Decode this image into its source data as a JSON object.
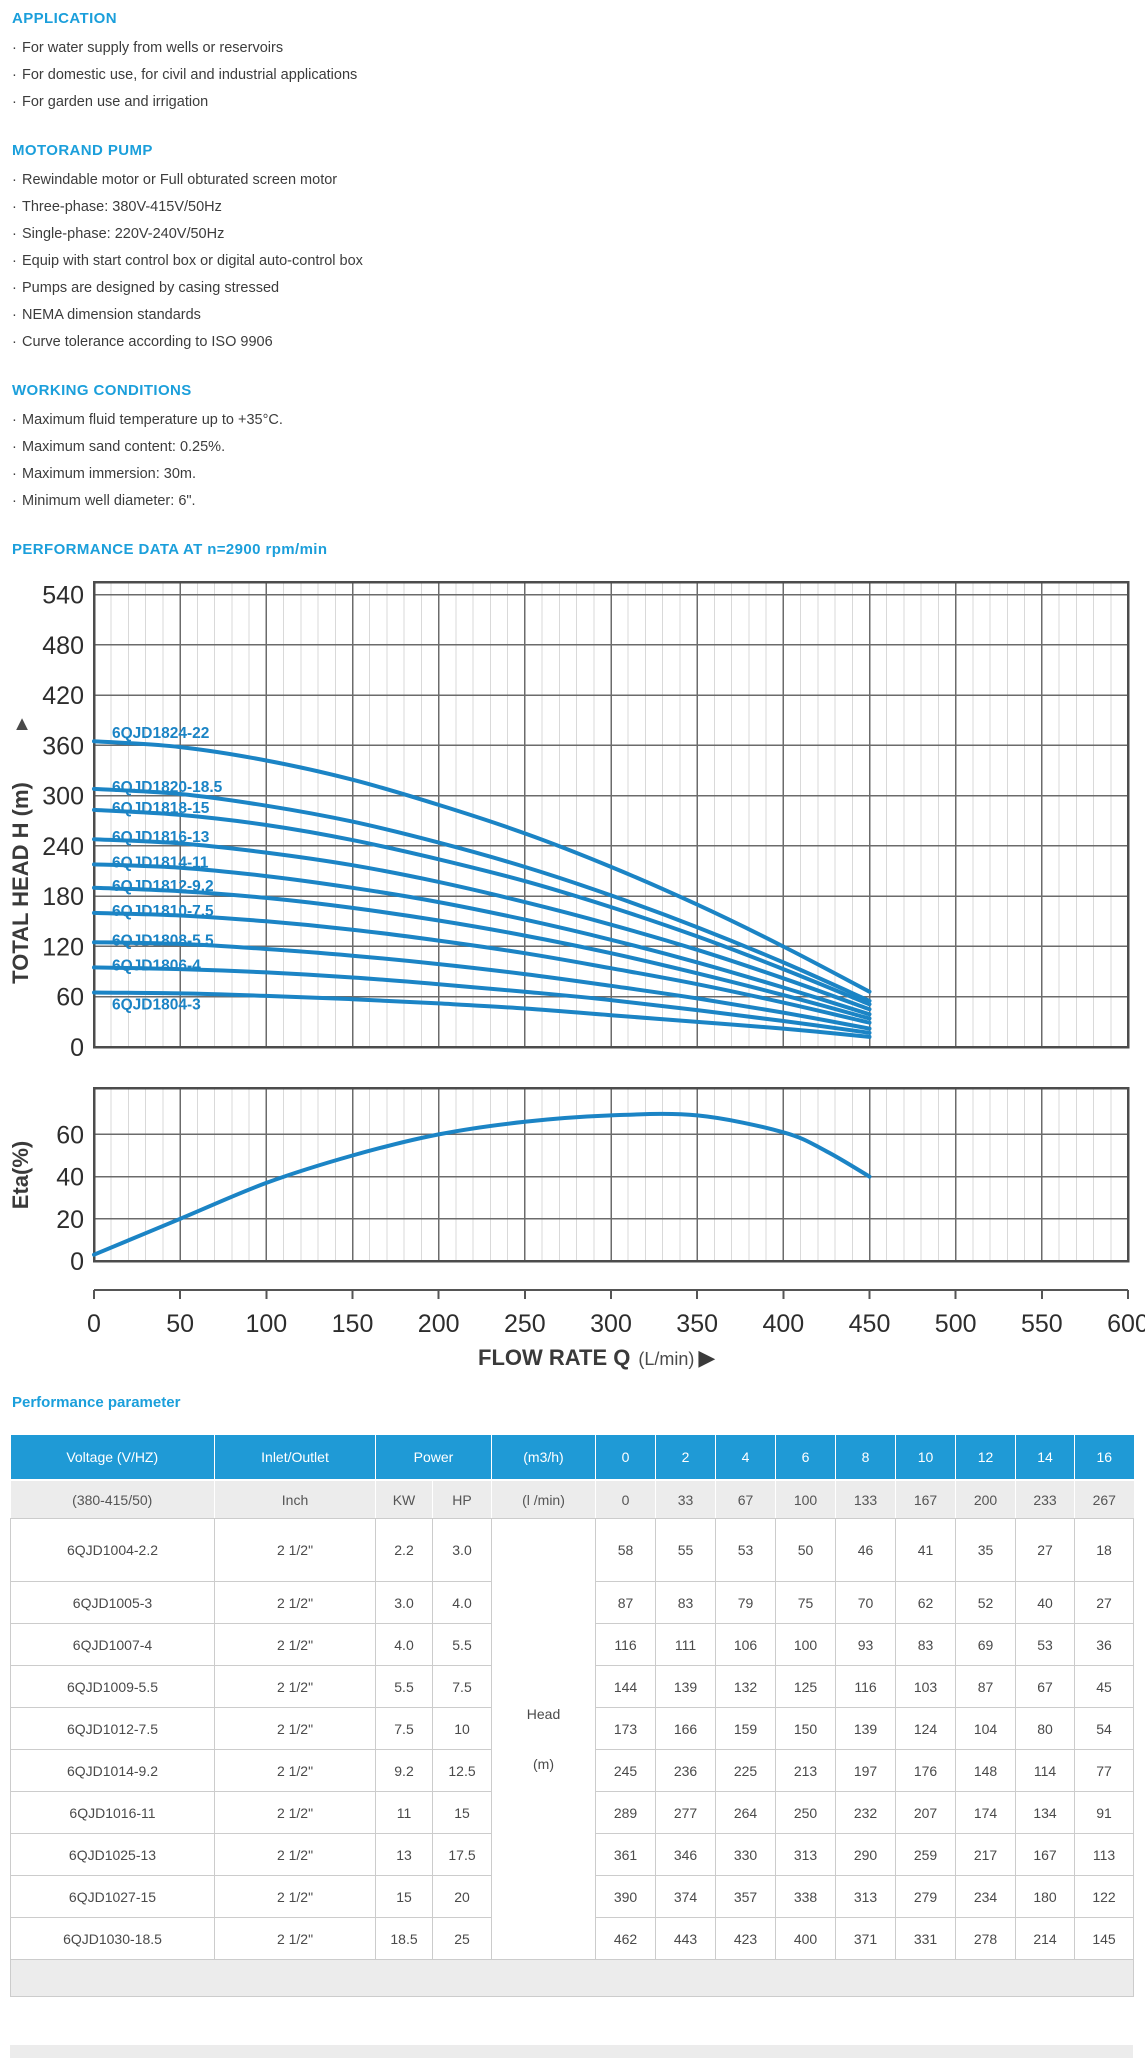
{
  "page": {
    "background": "#ffffff",
    "accent_blue": "#1b9fdb",
    "curve_blue": "#1b84c5",
    "table_header_blue": "#1f9ad6"
  },
  "sections": [
    {
      "title": "APPLICATION",
      "bullets": [
        "For water supply from wells or reservoirs",
        "For domestic use, for civil and industrial applications",
        "For garden use and irrigation"
      ]
    },
    {
      "title": "MOTORAND PUMP",
      "bullets": [
        "Rewindable motor or Full obturated screen motor",
        "Three-phase: 380V-415V/50Hz",
        "Single-phase: 220V-240V/50Hz",
        "Equip with start control box or digital auto-control box",
        "Pumps are designed by casing stressed",
        "NEMA dimension standards",
        "Curve tolerance according to ISO 9906"
      ]
    },
    {
      "title": "WORKING CONDITIONS",
      "bullets": [
        "Maximum fluid temperature up to +35°C.",
        "Maximum sand content: 0.25%.",
        "Maximum immersion: 30m.",
        "Minimum well diameter: 6\"."
      ]
    }
  ],
  "chart_heading": "PERFORMANCE DATA AT n=2900 rpm/min",
  "chart_data": {
    "type": "line",
    "title": "PERFORMANCE DATA AT n=2900 rpm/min",
    "x_axis": {
      "label_bold": "FLOW RATE Q",
      "label_unit": "(L/min)",
      "arrow": "▶",
      "min": 0,
      "max": 600,
      "tick_step": 50,
      "minor_step": 10,
      "ticks": [
        0,
        50,
        100,
        150,
        200,
        250,
        300,
        350,
        400,
        450,
        500,
        550,
        600
      ]
    },
    "head_axis": {
      "label": "TOTAL HEAD H (m)",
      "arrow": "▲",
      "min": 0,
      "max": 555,
      "tick_step": 60,
      "ticks": [
        0,
        60,
        120,
        180,
        240,
        300,
        360,
        420,
        480,
        540
      ]
    },
    "eta_axis": {
      "label": "Eta(%)",
      "min": 0,
      "max": 82,
      "ticks": [
        0,
        20,
        40,
        60
      ]
    },
    "grid": {
      "major_color": "#6b6b6b",
      "minor_color": "#d9d9d9",
      "border_color": "#4c4c4c"
    },
    "curve_color": "#1b84c5",
    "q_points": [
      0,
      50,
      100,
      150,
      200,
      250,
      300,
      350,
      400,
      450
    ],
    "curves": [
      {
        "name": "6QJD1824-22",
        "label_dy": -3,
        "head": [
          365,
          358,
          342,
          319,
          289,
          255,
          215,
          170,
          120,
          66
        ]
      },
      {
        "name": "6QJD1820-18.5",
        "label_dy": 3,
        "head": [
          308,
          302,
          288,
          269,
          244,
          215,
          181,
          143,
          101,
          55
        ]
      },
      {
        "name": "6QJD1818-15",
        "label_dy": 3,
        "head": [
          283,
          277,
          265,
          247,
          224,
          198,
          167,
          132,
          93,
          51
        ]
      },
      {
        "name": "6QJD1816-13",
        "label_dy": 3,
        "head": [
          248,
          243,
          232,
          217,
          197,
          173,
          146,
          116,
          82,
          45
        ]
      },
      {
        "name": "6QJD1814-11",
        "label_dy": 3,
        "head": [
          218,
          214,
          204,
          190,
          173,
          152,
          128,
          101,
          71,
          39
        ]
      },
      {
        "name": "6QJD1812-9.2",
        "label_dy": 3,
        "head": [
          190,
          186,
          178,
          166,
          151,
          133,
          112,
          88,
          62,
          34
        ]
      },
      {
        "name": "6QJD1810-7.5",
        "label_dy": 3,
        "head": [
          160,
          157,
          150,
          140,
          127,
          112,
          94,
          75,
          53,
          29
        ]
      },
      {
        "name": "6QJD1808-5.5",
        "label_dy": 3,
        "head": [
          125,
          123,
          117,
          109,
          99,
          87,
          73,
          58,
          41,
          22
        ]
      },
      {
        "name": "6QJD1806-4",
        "label_dy": 3,
        "head": [
          95,
          93,
          89,
          83,
          75,
          66,
          56,
          44,
          31,
          17
        ]
      },
      {
        "name": "6QJD1804-3",
        "label_dy": 17,
        "head": [
          65,
          64,
          61,
          57,
          52,
          46,
          38,
          30,
          22,
          12
        ]
      }
    ],
    "eta_curve": {
      "q": [
        0,
        50,
        100,
        150,
        200,
        250,
        300,
        350,
        400,
        425,
        450
      ],
      "eta": [
        3,
        20,
        37,
        50,
        60,
        66,
        69,
        69,
        61,
        52,
        40
      ]
    }
  },
  "table": {
    "title": "Performance parameter",
    "header_row": [
      "Voltage (V/HZ)",
      "Inlet/Outlet",
      "Power",
      "(m3/h)",
      "0",
      "2",
      "4",
      "6",
      "8",
      "10",
      "12",
      "14",
      "16"
    ],
    "subheader_row": [
      "(380-415/50)",
      "Inch",
      "KW",
      "HP",
      "(l /min)",
      "0",
      "33",
      "67",
      "100",
      "133",
      "167",
      "200",
      "233",
      "267"
    ],
    "head_cell_line1": "Head",
    "head_cell_line2": "(m)",
    "rows": [
      {
        "model": "6QJD1004-2.2",
        "inlet": "2 1/2\"",
        "kw": "2.2",
        "hp": "3.0",
        "heads": [
          "58",
          "55",
          "53",
          "50",
          "46",
          "41",
          "35",
          "27",
          "18"
        ]
      },
      {
        "model": "6QJD1005-3",
        "inlet": "2 1/2\"",
        "kw": "3.0",
        "hp": "4.0",
        "heads": [
          "87",
          "83",
          "79",
          "75",
          "70",
          "62",
          "52",
          "40",
          "27"
        ]
      },
      {
        "model": "6QJD1007-4",
        "inlet": "2 1/2\"",
        "kw": "4.0",
        "hp": "5.5",
        "heads": [
          "116",
          "111",
          "106",
          "100",
          "93",
          "83",
          "69",
          "53",
          "36"
        ]
      },
      {
        "model": "6QJD1009-5.5",
        "inlet": "2 1/2\"",
        "kw": "5.5",
        "hp": "7.5",
        "heads": [
          "144",
          "139",
          "132",
          "125",
          "116",
          "103",
          "87",
          "67",
          "45"
        ]
      },
      {
        "model": "6QJD1012-7.5",
        "inlet": "2 1/2\"",
        "kw": "7.5",
        "hp": "10",
        "heads": [
          "173",
          "166",
          "159",
          "150",
          "139",
          "124",
          "104",
          "80",
          "54"
        ]
      },
      {
        "model": "6QJD1014-9.2",
        "inlet": "2 1/2\"",
        "kw": "9.2",
        "hp": "12.5",
        "heads": [
          "245",
          "236",
          "225",
          "213",
          "197",
          "176",
          "148",
          "114",
          "77"
        ]
      },
      {
        "model": "6QJD1016-11",
        "inlet": "2 1/2\"",
        "kw": "11",
        "hp": "15",
        "heads": [
          "289",
          "277",
          "264",
          "250",
          "232",
          "207",
          "174",
          "134",
          "91"
        ]
      },
      {
        "model": "6QJD1025-13",
        "inlet": "2 1/2\"",
        "kw": "13",
        "hp": "17.5",
        "heads": [
          "361",
          "346",
          "330",
          "313",
          "290",
          "259",
          "217",
          "167",
          "113"
        ]
      },
      {
        "model": "6QJD1027-15",
        "inlet": "2 1/2\"",
        "kw": "15",
        "hp": "20",
        "heads": [
          "390",
          "374",
          "357",
          "338",
          "313",
          "279",
          "234",
          "180",
          "122"
        ]
      },
      {
        "model": "6QJD1030-18.5",
        "inlet": "2 1/2\"",
        "kw": "18.5",
        "hp": "25",
        "heads": [
          "462",
          "443",
          "423",
          "400",
          "371",
          "331",
          "278",
          "214",
          "145"
        ]
      }
    ]
  }
}
